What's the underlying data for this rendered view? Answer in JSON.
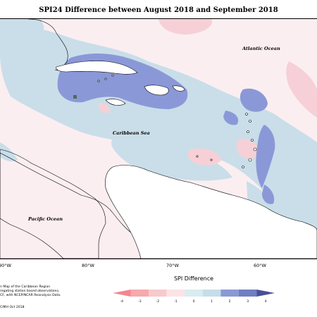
{
  "title": "SPI24 Difference between August 2018 and September 2018",
  "labels": {
    "atlantic": "Atlantic Ocean",
    "caribbean": "Caribbean Sea",
    "pacific": "Pacific Ocean"
  },
  "longitudes": [
    "90°W",
    "80°W",
    "70°W",
    "60°W"
  ],
  "credit": {
    "line1": "n Map of the Caribbean Region",
    "line2": "regating station based observations,",
    "line3": "CF, with NCEP/NCAR Reanalysis Data.",
    "line4": "CIMH Oct 2018"
  },
  "legend": {
    "title": "SPI Difference",
    "ticks": [
      "-4",
      "-3",
      "-2",
      "-1",
      "0",
      "1",
      "2",
      "3",
      "4"
    ],
    "colors": [
      "#f3868d",
      "#f6a9ae",
      "#f8c9cd",
      "#fbe3e6",
      "#d9ecef",
      "#c5dde8",
      "#8a99d6",
      "#6f7fbf",
      "#4b4f96"
    ]
  },
  "map_colors": {
    "background": "#fbeef1",
    "light_blue": "#c9dee9",
    "mid_blue": "#8b98d7",
    "dark_blue": "#6f7fbf",
    "pink": "#f6d0d6",
    "land": "#ffffff"
  }
}
